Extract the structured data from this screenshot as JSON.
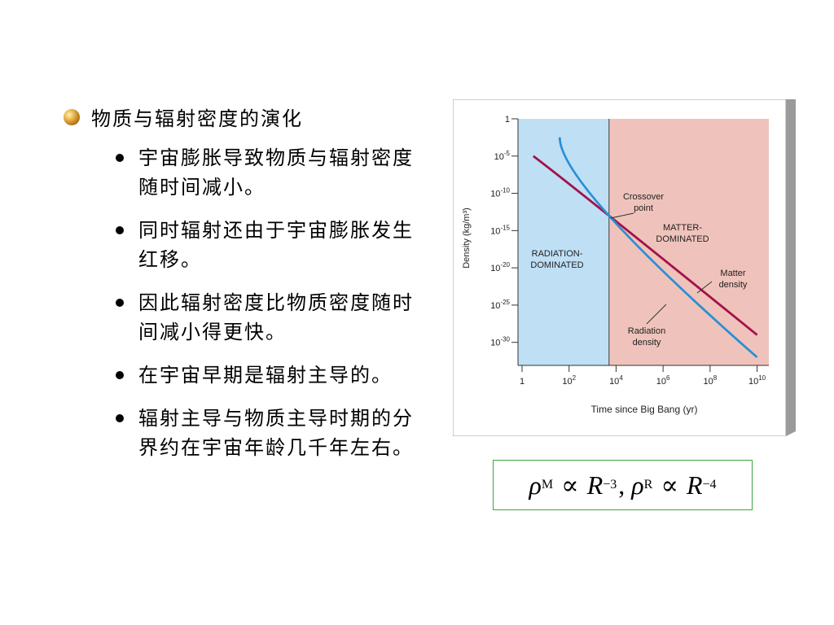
{
  "slide": {
    "heading": "物质与辐射密度的演化",
    "bullets": [
      "宇宙膨胀导致物质与辐射密度随时间减小。",
      "同时辐射还由于宇宙膨胀发生红移。",
      "因此辐射密度比物质密度随时间减小得更快。",
      "在宇宙早期是辐射主导的。",
      "辐射主导与物质主导时期的分界约在宇宙年龄几千年左右。"
    ]
  },
  "formula": {
    "rho": "ρ",
    "sub_m": "M",
    "prop": "∝",
    "r": "R",
    "exp_m": "−3",
    "comma": ",",
    "sub_r": "R",
    "exp_r": "−4"
  },
  "chart_data": {
    "type": "line",
    "xlabel": "Time since Big Bang (yr)",
    "ylabel": "Density (kg/m³)",
    "x_scale": "log",
    "y_scale": "log",
    "xlim": [
      1,
      10000000000
    ],
    "ylim": [
      1e-32,
      1
    ],
    "x_ticks": [
      {
        "value": 1,
        "base": "1",
        "exp": ""
      },
      {
        "value": 100,
        "base": "10",
        "exp": "2"
      },
      {
        "value": 10000,
        "base": "10",
        "exp": "4"
      },
      {
        "value": 1000000,
        "base": "10",
        "exp": "6"
      },
      {
        "value": 100000000,
        "base": "10",
        "exp": "8"
      },
      {
        "value": 10000000000,
        "base": "10",
        "exp": "10"
      }
    ],
    "y_ticks": [
      {
        "value": 1,
        "base": "1",
        "exp": ""
      },
      {
        "value": 1e-05,
        "base": "10",
        "exp": "-5"
      },
      {
        "value": 1e-10,
        "base": "10",
        "exp": "-10"
      },
      {
        "value": 1e-15,
        "base": "10",
        "exp": "-15"
      },
      {
        "value": 1e-20,
        "base": "10",
        "exp": "-20"
      },
      {
        "value": 1e-25,
        "base": "10",
        "exp": "-25"
      },
      {
        "value": 1e-30,
        "base": "10",
        "exp": "-30"
      }
    ],
    "regions": [
      {
        "label_lines": [
          "RADIATION-",
          "DOMINATED"
        ],
        "x_from": 1,
        "x_to": 5000,
        "color": "#bfdff5"
      },
      {
        "label_lines": [
          "MATTER-",
          "DOMINATED"
        ],
        "x_from": 5000,
        "x_to": 100000000000,
        "color": "#efc3bb"
      }
    ],
    "crossover": {
      "x": 5000,
      "y": 1e-13,
      "label_lines": [
        "Crossover",
        "point"
      ]
    },
    "series": [
      {
        "name": "Matter density",
        "label_lines": [
          "Matter",
          "density"
        ],
        "color": "#a3124a",
        "x": [
          3,
          5000,
          10000000000
        ],
        "y": [
          1e-05,
          1e-13,
          1e-29
        ]
      },
      {
        "name": "Radiation density",
        "label_lines": [
          "Radiation",
          "density"
        ],
        "color": "#2a8fd4",
        "x": [
          40,
          5000,
          10000000000
        ],
        "y": [
          0.0033,
          1e-13,
          1e-32
        ]
      }
    ]
  }
}
